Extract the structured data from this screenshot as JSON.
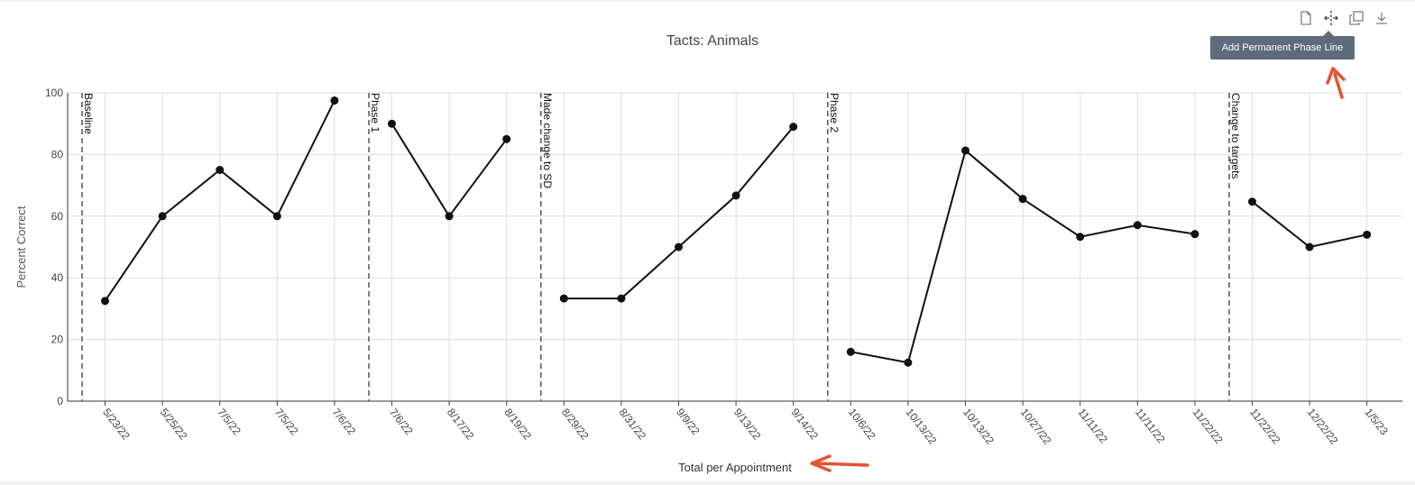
{
  "modebar": {
    "buttons": [
      {
        "name": "download-data-icon"
      },
      {
        "name": "add-phase-line-icon"
      },
      {
        "name": "copy-icon"
      },
      {
        "name": "download-icon"
      }
    ],
    "tooltip": "Add Permanent Phase Line"
  },
  "colors": {
    "line": "#111111",
    "grid": "#dddddd",
    "phase_line": "#555555",
    "annotation_arrow": "#e8522f"
  },
  "chart_data": {
    "type": "line",
    "title": "Tacts: Animals",
    "xlabel": "Total per Appointment",
    "ylabel": "Percent Correct",
    "ylim": [
      0,
      100
    ],
    "yticks": [
      0,
      20,
      40,
      60,
      80,
      100
    ],
    "grid": true,
    "categories": [
      "5/23/22",
      "5/25/22",
      "7/5/22",
      "7/5/22",
      "7/6/22",
      "7/6/22",
      "8/17/22",
      "8/19/22",
      "8/29/22",
      "8/31/22",
      "9/9/22",
      "9/13/22",
      "9/14/22",
      "10/6/22",
      "10/13/22",
      "10/13/22",
      "10/27/22",
      "11/11/22",
      "11/11/22",
      "11/22/22",
      "11/22/22",
      "12/22/22",
      "1/5/23"
    ],
    "segments": [
      {
        "start": 0,
        "values": [
          32.5,
          60,
          75,
          60,
          97.5
        ]
      },
      {
        "start": 5,
        "values": [
          90,
          60,
          85
        ]
      },
      {
        "start": 8,
        "values": [
          33.3,
          33.3,
          50,
          66.7,
          89
        ]
      },
      {
        "start": 13,
        "values": [
          16,
          12.5,
          81.3,
          65.6,
          53.3,
          57.1,
          54.2
        ]
      },
      {
        "start": 20,
        "values": [
          64.7,
          50,
          54
        ]
      }
    ],
    "phase_lines": [
      {
        "before_index": 0,
        "label": "Baseline"
      },
      {
        "before_index": 5,
        "label": "Phase 1"
      },
      {
        "before_index": 8,
        "label": "Made change to SD"
      },
      {
        "before_index": 13,
        "label": "Phase 2"
      },
      {
        "before_index": 20,
        "label": "Change to targets"
      }
    ]
  }
}
